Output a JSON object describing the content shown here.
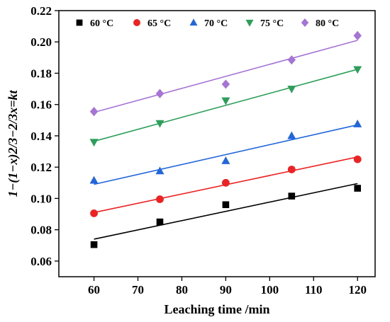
{
  "chart_data": {
    "type": "scatter",
    "xlabel": "Leaching time /min",
    "ylabel": "1−(1−x)2/3−2/3x=kt",
    "xlim": [
      52,
      124
    ],
    "ylim": [
      0.05,
      0.22
    ],
    "xticks": [
      60,
      70,
      80,
      90,
      100,
      110,
      120
    ],
    "xtick_labels": [
      "60",
      "70",
      "80",
      "90",
      "100",
      "110",
      "120"
    ],
    "yticks": [
      0.06,
      0.08,
      0.1,
      0.12,
      0.14,
      0.16,
      0.18,
      0.2,
      0.22
    ],
    "ytick_labels": [
      "0.06",
      "0.08",
      "0.10",
      "0.12",
      "0.14",
      "0.16",
      "0.18",
      "0.20",
      "0.22"
    ],
    "grid": false,
    "legend_position": "top",
    "x": [
      60,
      75,
      90,
      105,
      120
    ],
    "series": [
      {
        "name": "60 °C",
        "marker": "square",
        "color": "#000000",
        "y": [
          0.0705,
          0.085,
          0.096,
          0.1015,
          0.1065
        ],
        "fit": [
          0.074,
          0.1095
        ]
      },
      {
        "name": "65 °C",
        "marker": "circle",
        "color": "#ee2222",
        "y": [
          0.0905,
          0.0995,
          0.11,
          0.1185,
          0.125
        ],
        "fit": [
          0.091,
          0.1265
        ]
      },
      {
        "name": "70 °C",
        "marker": "triangle-up",
        "color": "#2266dd",
        "y": [
          0.1115,
          0.1175,
          0.124,
          0.14,
          0.1475
        ],
        "fit": [
          0.109,
          0.147
        ]
      },
      {
        "name": "75 °C",
        "marker": "triangle-down",
        "color": "#2ca05a",
        "y": [
          0.136,
          0.148,
          0.1625,
          0.17,
          0.1825
        ],
        "fit": [
          0.1365,
          0.1825
        ]
      },
      {
        "name": "80 °C",
        "marker": "diamond",
        "color": "#a673d6",
        "y": [
          0.1555,
          0.167,
          0.173,
          0.1885,
          0.204
        ],
        "fit": [
          0.155,
          0.201
        ]
      }
    ]
  }
}
